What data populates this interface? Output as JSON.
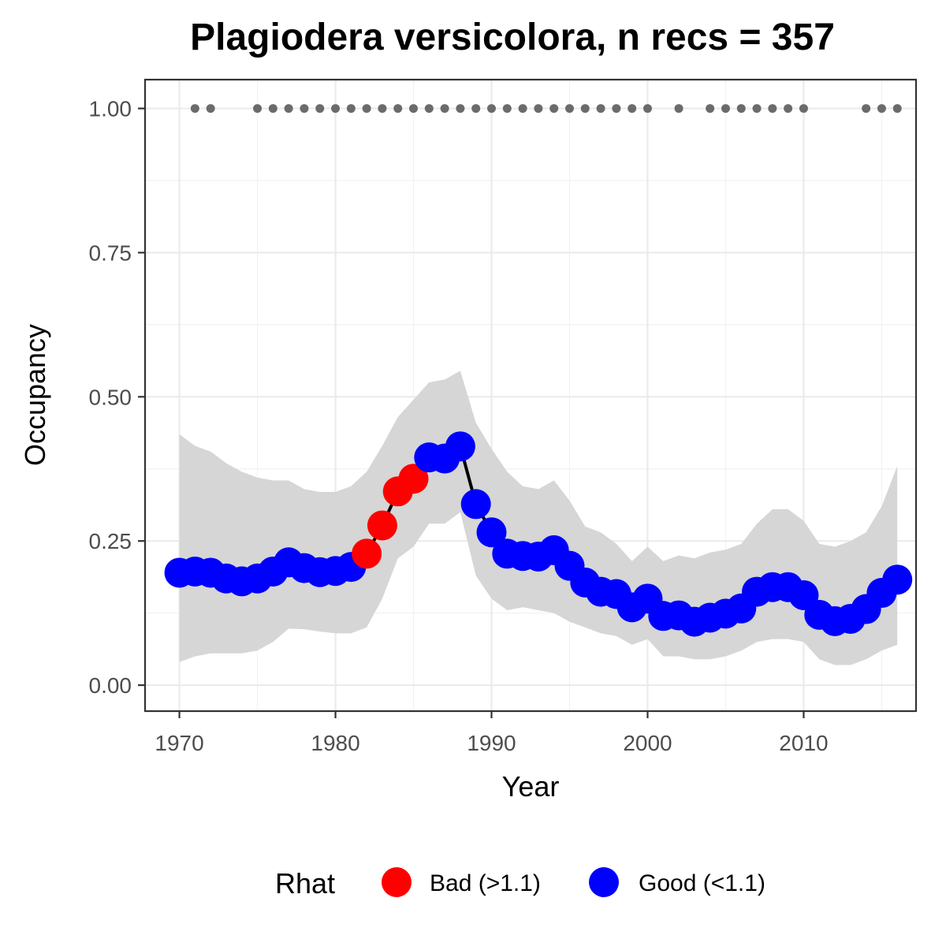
{
  "chart_data": {
    "type": "line",
    "title": "Plagiodera versicolora, n recs = 357",
    "xlabel": "Year",
    "ylabel": "Occupancy",
    "xlim": [
      1967.8,
      2017.2
    ],
    "ylim": [
      -0.045,
      1.05
    ],
    "x_ticks": [
      1970,
      1980,
      1990,
      2000,
      2010
    ],
    "x_tick_labels": [
      "1970",
      "1980",
      "1990",
      "2000",
      "2010"
    ],
    "y_ticks": [
      0,
      0.25,
      0.5,
      0.75,
      1.0
    ],
    "y_tick_labels": [
      "0.00",
      "0.25",
      "0.50",
      "0.75",
      "1.00"
    ],
    "grid": true,
    "legend": {
      "title": "Rhat",
      "position": "bottom",
      "entries": [
        {
          "label": "Bad (>1.1)",
          "color": "#ff0000"
        },
        {
          "label": "Good (<1.1)",
          "color": "#0000ff"
        }
      ]
    },
    "colors": {
      "bad": "#ff0000",
      "good": "#0000ff",
      "line": "#000000",
      "ribbon": "#d6d6d6",
      "record_dot": "#6b6b6b"
    },
    "series": [
      {
        "x": [
          1970,
          1971,
          1972,
          1973,
          1974,
          1975,
          1976,
          1977,
          1978,
          1979,
          1980,
          1981,
          1982,
          1983,
          1984,
          1985,
          1986,
          1987,
          1988,
          1989,
          1990,
          1991,
          1992,
          1993,
          1994,
          1995,
          1996,
          1997,
          1998,
          1999,
          2000,
          2001,
          2002,
          2003,
          2004,
          2005,
          2006,
          2007,
          2008,
          2009,
          2010,
          2011,
          2012,
          2013,
          2014,
          2015,
          2016
        ],
        "y": [
          0.195,
          0.197,
          0.195,
          0.185,
          0.18,
          0.185,
          0.197,
          0.213,
          0.203,
          0.196,
          0.198,
          0.205,
          0.228,
          0.277,
          0.336,
          0.358,
          0.395,
          0.393,
          0.414,
          0.314,
          0.265,
          0.228,
          0.224,
          0.223,
          0.234,
          0.207,
          0.178,
          0.162,
          0.158,
          0.135,
          0.15,
          0.12,
          0.121,
          0.11,
          0.117,
          0.124,
          0.133,
          0.162,
          0.17,
          0.17,
          0.156,
          0.122,
          0.111,
          0.115,
          0.132,
          0.16,
          0.183
        ],
        "rhat": [
          "good",
          "good",
          "good",
          "good",
          "good",
          "good",
          "good",
          "good",
          "good",
          "good",
          "good",
          "good",
          "bad",
          "bad",
          "bad",
          "bad",
          "good",
          "good",
          "good",
          "good",
          "good",
          "good",
          "good",
          "good",
          "good",
          "good",
          "good",
          "good",
          "good",
          "good",
          "good",
          "good",
          "good",
          "good",
          "good",
          "good",
          "good",
          "good",
          "good",
          "good",
          "good",
          "good",
          "good",
          "good",
          "good",
          "good",
          "good"
        ],
        "lower": [
          0.04,
          0.05,
          0.055,
          0.055,
          0.055,
          0.06,
          0.075,
          0.098,
          0.097,
          0.093,
          0.09,
          0.09,
          0.1,
          0.15,
          0.22,
          0.24,
          0.28,
          0.28,
          0.3,
          0.19,
          0.15,
          0.13,
          0.135,
          0.13,
          0.125,
          0.11,
          0.1,
          0.09,
          0.085,
          0.07,
          0.08,
          0.05,
          0.05,
          0.045,
          0.045,
          0.05,
          0.06,
          0.075,
          0.08,
          0.08,
          0.075,
          0.045,
          0.035,
          0.035,
          0.045,
          0.06,
          0.07
        ],
        "upper": [
          0.435,
          0.415,
          0.405,
          0.385,
          0.37,
          0.36,
          0.355,
          0.355,
          0.34,
          0.335,
          0.335,
          0.345,
          0.37,
          0.415,
          0.465,
          0.495,
          0.525,
          0.53,
          0.545,
          0.455,
          0.41,
          0.37,
          0.345,
          0.34,
          0.355,
          0.32,
          0.275,
          0.265,
          0.245,
          0.215,
          0.24,
          0.215,
          0.225,
          0.22,
          0.23,
          0.235,
          0.245,
          0.28,
          0.305,
          0.305,
          0.285,
          0.245,
          0.24,
          0.25,
          0.265,
          0.31,
          0.38
        ]
      }
    ],
    "record_years": [
      1971,
      1972,
      1975,
      1976,
      1977,
      1978,
      1979,
      1980,
      1981,
      1982,
      1983,
      1984,
      1985,
      1986,
      1987,
      1988,
      1989,
      1990,
      1991,
      1992,
      1993,
      1994,
      1995,
      1996,
      1997,
      1998,
      1999,
      2000,
      2002,
      2004,
      2005,
      2006,
      2007,
      2008,
      2009,
      2010,
      2014,
      2015,
      2016
    ],
    "record_value": 1.0
  }
}
